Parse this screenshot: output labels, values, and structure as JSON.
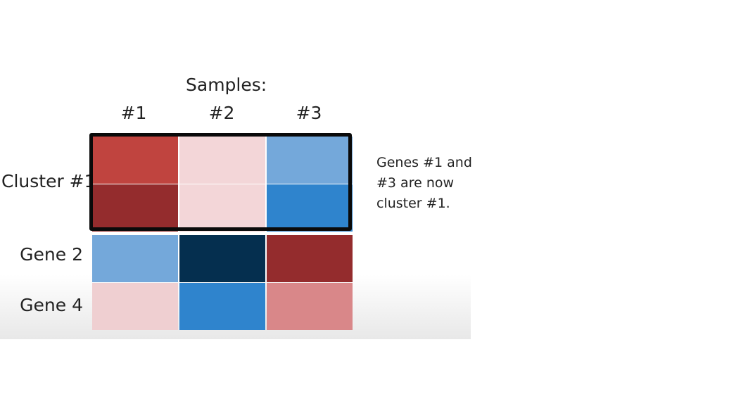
{
  "title": "Samples:",
  "columns": [
    "#1",
    "#2",
    "#3"
  ],
  "rows": {
    "cluster": "Cluster #1",
    "gene2": "Gene 2",
    "gene4": "Gene 4"
  },
  "note": [
    "Genes #1 and",
    "#3 are now",
    "cluster #1."
  ],
  "colors": {
    "cluster_r1": [
      "#c0443f",
      "#f3d6d8",
      "#74a8da"
    ],
    "cluster_r2": [
      "#942c2d",
      "#f3d6d8",
      "#2f84cd"
    ],
    "gene2": [
      "#74a8da",
      "#052f4f",
      "#942c2d"
    ],
    "gene4": [
      "#efcfd1",
      "#2f84cd",
      "#d98789"
    ],
    "box_border": "#0a0a0a"
  }
}
